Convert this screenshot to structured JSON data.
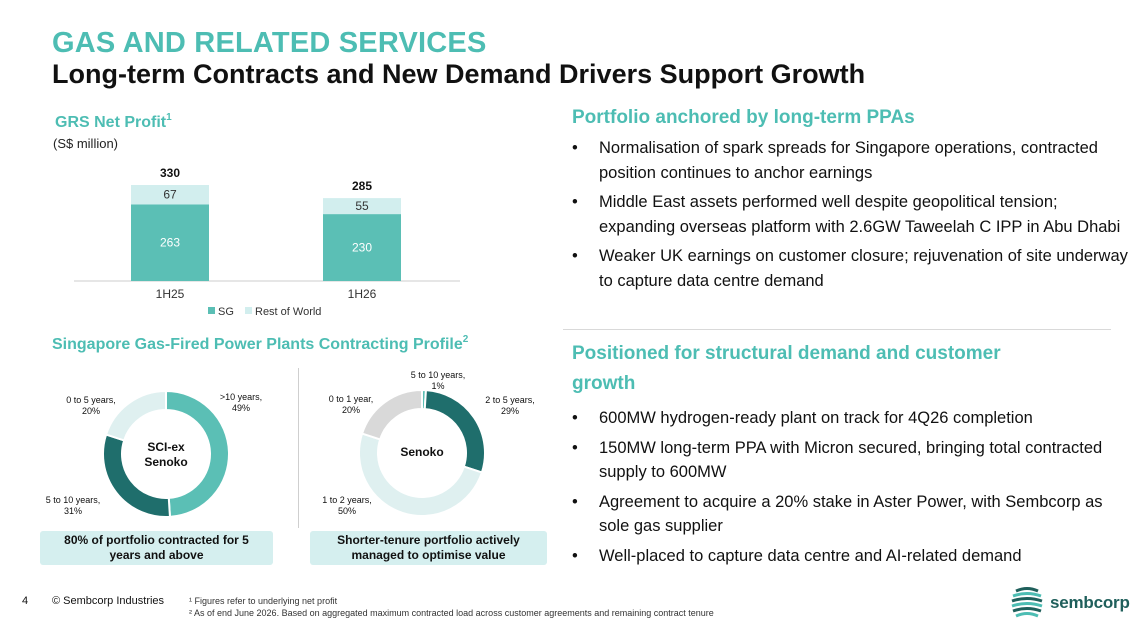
{
  "header": {
    "title": "GAS AND RELATED SERVICES",
    "subtitle": "Long-term Contracts and New Demand Drivers Support Growth"
  },
  "net_profit": {
    "title": "GRS Net Profit",
    "title_sup": "1",
    "unit": "(S$ million)"
  },
  "contracting": {
    "title": "Singapore Gas-Fired Power Plants Contracting Profile",
    "title_sup": "2",
    "donut1": {
      "center_line1": "SCI-ex",
      "center_line2": "Senoko",
      "labels": [
        {
          "line1": ">10 years,",
          "line2": "49%"
        },
        {
          "line1": "5 to 10 years,",
          "line2": "31%"
        },
        {
          "line1": "0 to 5 years,",
          "line2": "20%"
        }
      ],
      "callout": "80% of portfolio contracted for 5 years and above"
    },
    "donut2": {
      "center": "Senoko",
      "labels": [
        {
          "line1": "5 to 10 years,",
          "line2": "1%"
        },
        {
          "line1": "2 to 5 years,",
          "line2": "29%"
        },
        {
          "line1": "1 to 2 years,",
          "line2": "50%"
        },
        {
          "line1": "0 to 1 year,",
          "line2": "20%"
        }
      ],
      "callout": "Shorter-tenure portfolio actively managed to optimise value"
    }
  },
  "right": {
    "section1": {
      "heading": "Portfolio anchored by long-term PPAs",
      "bullets": [
        "Normalisation of spark spreads for Singapore operations, contracted position continues to anchor earnings",
        "Middle East assets performed well despite geopolitical tension; expanding overseas platform with 2.6GW Taweelah C IPP in Abu Dhabi",
        "Weaker UK earnings on customer closure; rejuvenation of site underway to capture data centre demand"
      ]
    },
    "section2": {
      "heading_line1": "Positioned for structural demand and customer",
      "heading_line2": "growth",
      "bullets": [
        "600MW hydrogen-ready plant on track for 4Q26 completion",
        "150MW long-term PPA with Micron secured, bringing total contracted supply to 600MW",
        "Agreement to acquire a 20% stake in Aster Power, with Sembcorp as sole gas supplier",
        "Well-placed to capture data centre and AI-related demand"
      ]
    },
    "bullet_char": "•"
  },
  "footer": {
    "page_number": "4",
    "copyright": "© Sembcorp Industries",
    "footnote1": "¹ Figures refer to underlying net profit",
    "footnote2": "² As of end June 2026. Based on aggregated maximum contracted load across customer agreements and remaining contract tenure",
    "logo_text": "sembcorp"
  },
  "colors": {
    "accent": "#4dbdb3",
    "sg_bar": "#5bbfb5",
    "row_bar": "#d2eeee",
    "dark_teal": "#1f6e6c",
    "light_teal": "#dff0f0",
    "grey": "#d9d9d9"
  },
  "chart_data": [
    {
      "type": "bar",
      "stacked": true,
      "categories": [
        "1H25",
        "1H26"
      ],
      "series": [
        {
          "name": "SG",
          "values": [
            263,
            230
          ]
        },
        {
          "name": "Rest of World",
          "values": [
            67,
            55
          ]
        }
      ],
      "totals": [
        330,
        285
      ],
      "legend": "bottom"
    },
    {
      "type": "pie",
      "donut": true,
      "center_label": "SCI-ex Senoko",
      "slices": [
        {
          "label": ">10 years",
          "value": 49
        },
        {
          "label": "5 to 10 years",
          "value": 31
        },
        {
          "label": "0 to 5 years",
          "value": 20
        }
      ]
    },
    {
      "type": "pie",
      "donut": true,
      "center_label": "Senoko",
      "slices": [
        {
          "label": "5 to 10 years",
          "value": 1
        },
        {
          "label": "2 to 5 years",
          "value": 29
        },
        {
          "label": "1 to 2 years",
          "value": 50
        },
        {
          "label": "0 to 1 year",
          "value": 20
        }
      ]
    }
  ]
}
